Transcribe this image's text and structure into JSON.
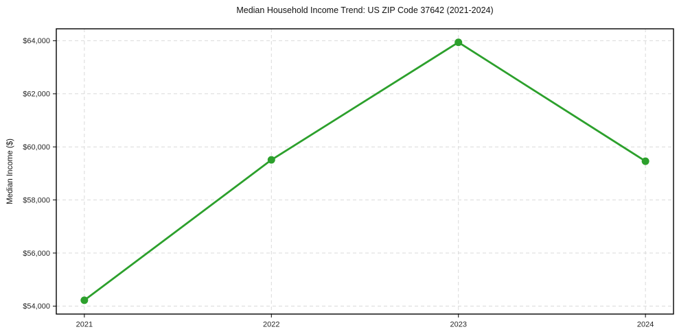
{
  "chart_data": {
    "type": "line",
    "title": "Median Household Income Trend: US ZIP Code 37642 (2021-2024)",
    "xlabel": "",
    "ylabel": "Median Income ($)",
    "categories": [
      "2021",
      "2022",
      "2023",
      "2024"
    ],
    "x": [
      2021,
      2022,
      2023,
      2024
    ],
    "values": [
      54220,
      59510,
      63940,
      59460
    ],
    "yticks": [
      54000,
      56000,
      58000,
      60000,
      62000,
      64000
    ],
    "ytick_labels": [
      "$54,000",
      "$56,000",
      "$58,000",
      "$60,000",
      "$62,000",
      "$64,000"
    ],
    "xlim": [
      2020.85,
      2024.15
    ],
    "ylim": [
      53700,
      64450
    ],
    "grid": true,
    "grid_line_style": "dashed",
    "legend_position": "none",
    "colors": {
      "line": "#2ca02c",
      "marker": "#2ca02c",
      "grid": "#d9d9d9",
      "spine": "#000000",
      "tick_label": "#262626",
      "background": "#ffffff"
    },
    "marker": "circle"
  }
}
